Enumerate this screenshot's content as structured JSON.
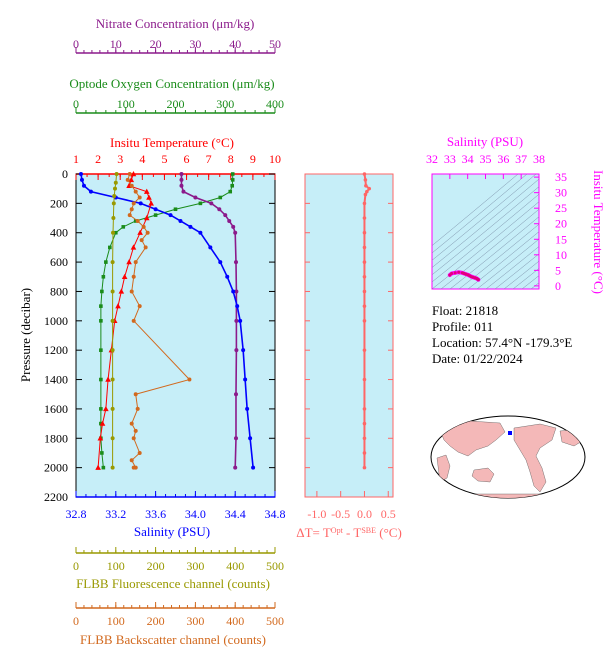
{
  "colors": {
    "nitrate": "#8b1a8b",
    "oxygen": "#1a8c1a",
    "temperature": "#ff0000",
    "salinity": "#0000ff",
    "fluorescence": "#999900",
    "backscatter": "#d2691e",
    "delta_t": "#ff6666",
    "ts_axis": "#ff00ff",
    "plot_bg": "#c6eef8",
    "land": "#f4b8b8"
  },
  "info": {
    "float": "Float:  21818",
    "profile": "Profile:  011",
    "location": "Location:  57.4°N  -179.3°E",
    "date": "Date:  01/22/2024"
  },
  "chart_data": [
    {
      "type": "line",
      "name": "profile-panel",
      "ylabel": "Pressure (decibar)",
      "y_ticks": [
        "0",
        "200",
        "400",
        "600",
        "800",
        "1000",
        "1200",
        "1400",
        "1600",
        "1800",
        "2000",
        "2200"
      ],
      "ylim": [
        2200,
        0
      ],
      "axes": {
        "nitrate": {
          "label": "Nitrate Concentration (μm/kg)",
          "ticks": [
            "0",
            "10",
            "20",
            "30",
            "40",
            "50"
          ],
          "lim": [
            0,
            50
          ]
        },
        "oxygen": {
          "label": "Optode Oxygen Concentration (μm/kg)",
          "ticks": [
            "0",
            "100",
            "200",
            "300",
            "400"
          ],
          "lim": [
            0,
            400
          ]
        },
        "temperature": {
          "label": "Insitu Temperature (°C)",
          "ticks": [
            "1",
            "2",
            "3",
            "4",
            "5",
            "6",
            "7",
            "8",
            "9",
            "10"
          ],
          "lim": [
            1,
            10
          ]
        },
        "salinity": {
          "label": "Salinity (PSU)",
          "ticks": [
            "32.8",
            "33.2",
            "33.6",
            "34.0",
            "34.4",
            "34.8"
          ],
          "lim": [
            32.8,
            34.8
          ]
        },
        "fluorescence": {
          "label": "FLBB Fluorescence channel (counts)",
          "ticks": [
            "0",
            "100",
            "200",
            "300",
            "400",
            "500"
          ],
          "lim": [
            0,
            500
          ]
        },
        "backscatter": {
          "label": "FLBB Backscatter channel (counts)",
          "ticks": [
            "0",
            "100",
            "200",
            "300",
            "400",
            "500"
          ],
          "lim": [
            0,
            500
          ]
        }
      },
      "series": [
        {
          "key": "oxygen",
          "marker": "square",
          "x": [
            315,
            315,
            314,
            310,
            290,
            250,
            200,
            160,
            120,
            95,
            80,
            68,
            60,
            55,
            52,
            50,
            50,
            50,
            50,
            50,
            50,
            50,
            52,
            55
          ],
          "y": [
            0,
            40,
            80,
            120,
            160,
            200,
            240,
            280,
            320,
            360,
            400,
            500,
            600,
            700,
            800,
            900,
            1000,
            1200,
            1400,
            1600,
            1700,
            1800,
            1900,
            2000
          ]
        },
        {
          "key": "nitrate",
          "marker": "circle",
          "x": [
            26.5,
            26.5,
            26.5,
            27,
            30,
            34,
            36,
            37.5,
            38.5,
            39.5,
            40,
            40.2,
            40.3,
            40.3,
            40.3,
            40.2,
            40.2,
            40
          ],
          "y": [
            0,
            40,
            80,
            120,
            160,
            200,
            240,
            280,
            320,
            360,
            400,
            600,
            800,
            1000,
            1200,
            1500,
            1800,
            2000
          ]
        },
        {
          "key": "salinity",
          "marker": "circle",
          "x": [
            32.85,
            32.86,
            32.88,
            32.95,
            33.2,
            33.45,
            33.6,
            33.75,
            33.85,
            33.95,
            34.05,
            34.15,
            34.25,
            34.32,
            34.38,
            34.42,
            34.45,
            34.48,
            34.5,
            34.52,
            34.55,
            34.58
          ],
          "y": [
            0,
            40,
            80,
            120,
            160,
            200,
            240,
            280,
            320,
            360,
            400,
            500,
            600,
            700,
            800,
            900,
            1000,
            1200,
            1400,
            1600,
            1800,
            2000
          ]
        },
        {
          "key": "temperature",
          "marker": "triangle",
          "x": [
            3.6,
            3.5,
            3.4,
            4.2,
            4.3,
            4.4,
            4.2,
            3.9,
            3.6,
            3.4,
            3.2,
            3.05,
            2.9,
            2.75,
            2.6,
            2.45,
            2.35,
            2.2,
            2.1,
            2.0
          ],
          "y": [
            0,
            40,
            80,
            120,
            160,
            200,
            300,
            400,
            500,
            600,
            700,
            800,
            900,
            1000,
            1200,
            1400,
            1600,
            1700,
            1800,
            2000
          ]
        },
        {
          "key": "fluorescence",
          "marker": "circle",
          "x": [
            102,
            100,
            98,
            96,
            95,
            94,
            93,
            92,
            92,
            92,
            92,
            92,
            92,
            92,
            92
          ],
          "y": [
            0,
            60,
            100,
            150,
            200,
            300,
            400,
            600,
            800,
            1000,
            1200,
            1400,
            1600,
            1800,
            2000
          ]
        },
        {
          "key": "backscatter",
          "marker": "circle",
          "x": [
            135,
            130,
            140,
            150,
            160,
            145,
            140,
            135,
            155,
            170,
            180,
            165,
            175,
            150,
            145,
            140,
            160,
            145,
            285,
            150,
            155,
            140,
            150,
            145,
            160,
            140,
            150,
            145
          ],
          "y": [
            0,
            40,
            80,
            120,
            160,
            200,
            240,
            280,
            320,
            360,
            400,
            450,
            500,
            600,
            700,
            800,
            900,
            1000,
            1400,
            1500,
            1600,
            1700,
            1750,
            1800,
            1900,
            1950,
            2000,
            2000
          ]
        }
      ]
    },
    {
      "type": "line",
      "name": "delta-t-panel",
      "xlabel": "ΔT= T^Opt - T^SBE (°C)",
      "x_ticks": [
        "-1.0",
        "-0.5",
        "0.0",
        "0.5"
      ],
      "xlim": [
        -1.25,
        0.6
      ],
      "ylim": [
        2200,
        0
      ],
      "x": [
        0.0,
        0.02,
        0.03,
        0.1,
        0.05,
        0.02,
        0.0,
        0.0,
        0.0,
        0.0,
        0.0,
        0.0,
        0.0,
        0.0,
        0.0,
        0.0,
        0.0,
        0.0,
        0.0,
        0.0,
        0.0,
        0.0
      ],
      "y": [
        0,
        40,
        80,
        100,
        120,
        140,
        200,
        300,
        400,
        500,
        600,
        700,
        800,
        900,
        1000,
        1200,
        1400,
        1600,
        1700,
        1800,
        1900,
        2000
      ]
    },
    {
      "type": "scatter",
      "name": "ts-diagram",
      "xlabel": "Salinity (PSU)",
      "ylabel": "Insitu Temperature (°C)",
      "x_ticks": [
        "32",
        "33",
        "34",
        "35",
        "36",
        "37",
        "38"
      ],
      "y_ticks": [
        "0",
        "5",
        "10",
        "15",
        "20",
        "25",
        "30",
        "35"
      ],
      "xlim": [
        32,
        38
      ],
      "ylim": [
        -1,
        36
      ],
      "x": [
        33.0,
        33.1,
        33.3,
        33.5,
        33.7,
        33.8,
        33.9,
        34.0,
        34.1,
        34.2,
        34.3,
        34.4,
        34.5,
        34.55,
        34.6
      ],
      "y": [
        3.5,
        4.0,
        4.2,
        4.4,
        4.2,
        4.0,
        3.8,
        3.6,
        3.3,
        3.0,
        2.8,
        2.6,
        2.4,
        2.2,
        2.0
      ]
    }
  ]
}
